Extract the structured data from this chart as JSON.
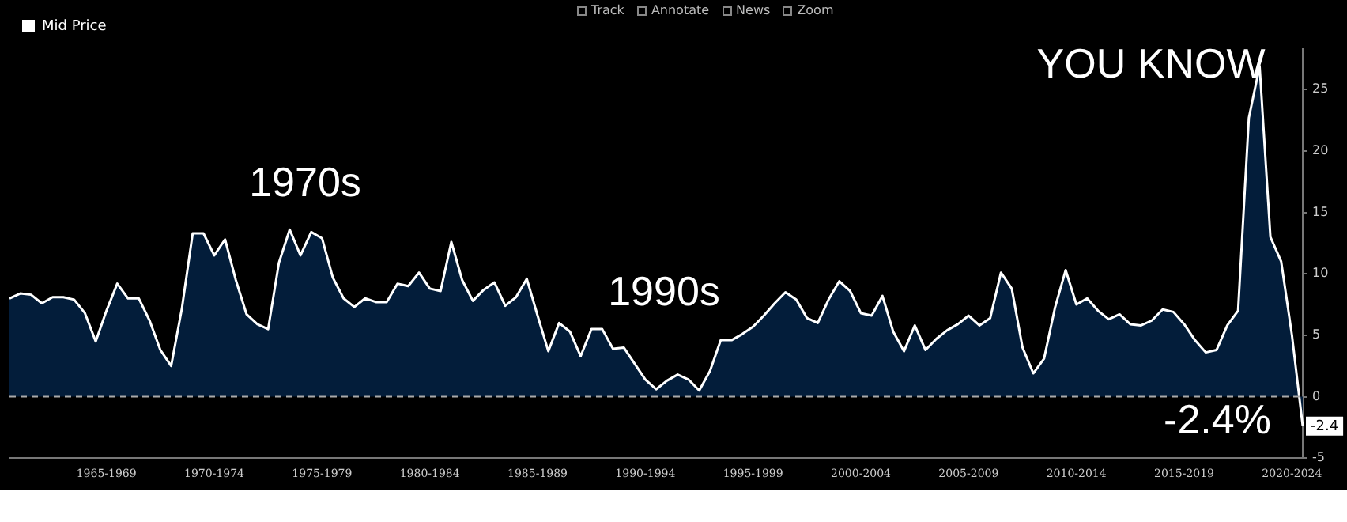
{
  "chart_data": {
    "type": "area",
    "categories": [
      null,
      null,
      null,
      null,
      null,
      null,
      null,
      null,
      null,
      "1965-1969",
      null,
      null,
      null,
      null,
      null,
      null,
      null,
      null,
      null,
      "1970-1974",
      null,
      null,
      null,
      null,
      null,
      null,
      null,
      null,
      null,
      "1975-1979",
      null,
      null,
      null,
      null,
      null,
      null,
      null,
      null,
      null,
      "1980-1984",
      null,
      null,
      null,
      null,
      null,
      null,
      null,
      null,
      null,
      "1985-1989",
      null,
      null,
      null,
      null,
      null,
      null,
      null,
      null,
      null,
      "1990-1994",
      null,
      null,
      null,
      null,
      null,
      null,
      null,
      null,
      null,
      "1995-1999",
      null,
      null,
      null,
      null,
      null,
      null,
      null,
      null,
      null,
      "2000-2004",
      null,
      null,
      null,
      null,
      null,
      null,
      null,
      null,
      null,
      "2005-2009",
      null,
      null,
      null,
      null,
      null,
      null,
      null,
      null,
      null,
      "2010-2014",
      null,
      null,
      null,
      null,
      null,
      null,
      null,
      null,
      null,
      "2015-2019",
      null,
      null,
      null,
      null,
      null,
      null,
      null,
      null,
      null,
      "2020-2024",
      null
    ],
    "series": [
      {
        "name": "Mid Price",
        "color": "#ffffff",
        "values": [
          8.0,
          8.4,
          8.3,
          7.6,
          8.1,
          8.1,
          7.9,
          6.8,
          4.5,
          7.0,
          9.2,
          8.0,
          8.0,
          6.2,
          3.8,
          2.5,
          7.2,
          13.3,
          13.3,
          11.5,
          12.8,
          9.5,
          6.7,
          5.9,
          5.5,
          10.9,
          13.6,
          11.5,
          13.4,
          12.9,
          9.7,
          8.0,
          7.3,
          8.0,
          7.7,
          7.7,
          9.2,
          9.0,
          10.1,
          8.8,
          8.6,
          12.6,
          9.5,
          7.8,
          8.7,
          9.3,
          7.4,
          8.1,
          9.6,
          6.6,
          3.7,
          6.0,
          5.3,
          3.3,
          5.5,
          5.5,
          3.9,
          4.0,
          2.7,
          1.4,
          0.6,
          1.3,
          1.8,
          1.4,
          0.5,
          2.1,
          4.6,
          4.6,
          5.1,
          5.7,
          6.6,
          7.6,
          8.5,
          7.9,
          6.4,
          6.0,
          7.9,
          9.4,
          8.6,
          6.8,
          6.6,
          8.2,
          5.3,
          3.7,
          5.8,
          3.8,
          4.7,
          5.4,
          5.9,
          6.6,
          5.8,
          6.4,
          10.1,
          8.8,
          4.0,
          1.9,
          3.1,
          7.2,
          10.3,
          7.5,
          8.0,
          7.0,
          6.3,
          6.7,
          5.9,
          5.8,
          6.2,
          7.1,
          6.9,
          5.9,
          4.6,
          3.6,
          3.8,
          5.8,
          7.0,
          22.7,
          26.9,
          13.0,
          11.0,
          5.0,
          -2.4
        ],
        "value_labels": [
          null,
          null,
          null,
          null,
          null,
          null,
          null,
          null,
          null,
          null,
          null,
          null,
          null,
          null,
          null,
          null,
          null,
          null,
          null,
          null,
          null,
          null,
          null,
          null,
          null,
          null,
          null,
          null,
          null,
          null,
          null,
          null,
          null,
          null,
          null,
          null,
          null,
          null,
          null,
          null,
          null,
          null,
          null,
          null,
          null,
          null,
          null,
          null,
          null,
          null,
          null,
          null,
          null,
          null,
          null,
          null,
          null,
          null,
          null,
          null,
          null,
          null,
          null,
          null,
          null,
          null,
          null,
          null,
          null,
          null,
          null,
          null,
          null,
          null,
          null,
          null,
          null,
          null,
          null,
          null,
          null,
          null,
          null,
          null,
          null,
          null,
          null,
          null,
          null,
          null,
          null,
          null,
          null,
          null,
          null,
          null,
          null,
          null,
          null,
          null,
          null,
          null,
          null,
          null,
          null,
          null,
          null,
          null,
          null,
          null,
          null,
          null,
          null,
          null,
          null,
          null,
          null,
          null,
          null,
          null,
          "-2.4"
        ]
      }
    ],
    "ylim": [
      -5,
      28.3
    ],
    "yticks": [
      -5,
      0,
      5,
      10,
      15,
      20,
      25
    ],
    "ref_lines": [
      {
        "axis": "y",
        "value": 0,
        "color": "#aaaaaa",
        "line_style": "dashed"
      }
    ],
    "annotations": [
      "Track",
      "Annotate",
      "News",
      "Zoom",
      "1970s",
      "1990s",
      "YOU KNOW",
      "-2.4%"
    ],
    "legend": "top left",
    "grid": false,
    "marker": "none",
    "line_style": "solid"
  }
}
